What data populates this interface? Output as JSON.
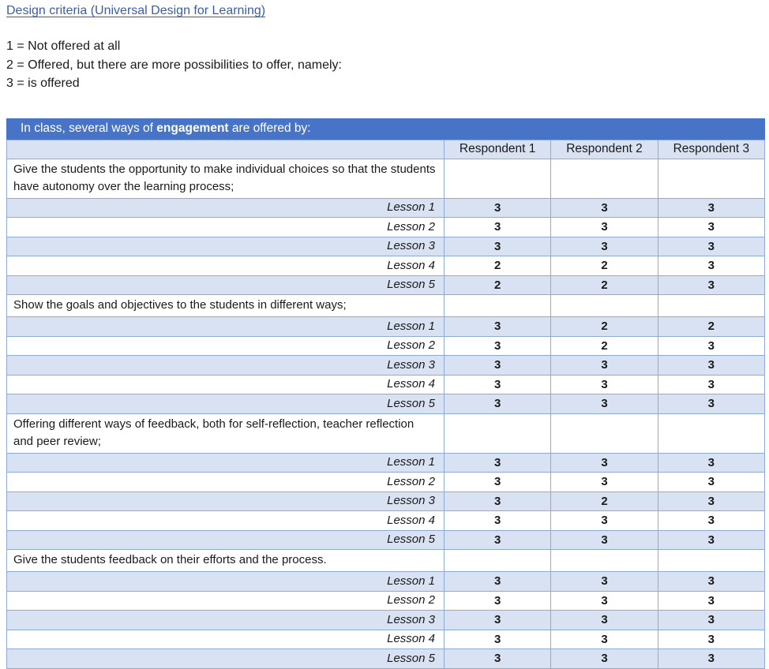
{
  "page": {
    "title": "Design criteria (Universal Design for Learning)",
    "legend": [
      "1 = Not offered at all",
      "2 = Offered, but there are more possibilities to offer, namely:",
      "3 = is offered"
    ]
  },
  "table": {
    "banner": {
      "prefix": "In class, several ways of ",
      "bold": "engagement",
      "suffix": " are offered by:"
    },
    "columns": [
      "Respondent 1",
      "Respondent 2",
      "Respondent 3"
    ],
    "sections": [
      {
        "question": "Give the students the opportunity to make individual choices so that the students have autonomy over the learning process;",
        "two_lines": true,
        "rows": [
          {
            "label": "Lesson 1",
            "values": [
              "3",
              "3",
              "3"
            ]
          },
          {
            "label": "Lesson 2",
            "values": [
              "3",
              "3",
              "3"
            ]
          },
          {
            "label": "Lesson 3",
            "values": [
              "3",
              "3",
              "3"
            ]
          },
          {
            "label": "Lesson 4",
            "values": [
              "2",
              "2",
              "3"
            ]
          },
          {
            "label": "Lesson 5",
            "values": [
              "2",
              "2",
              "3"
            ]
          }
        ]
      },
      {
        "question": "Show the goals and objectives to the students in different ways;",
        "two_lines": false,
        "rows": [
          {
            "label": "Lesson 1",
            "values": [
              "3",
              "2",
              "2"
            ]
          },
          {
            "label": "Lesson 2",
            "values": [
              "3",
              "2",
              "3"
            ]
          },
          {
            "label": "Lesson 3",
            "values": [
              "3",
              "3",
              "3"
            ]
          },
          {
            "label": "Lesson 4",
            "values": [
              "3",
              "3",
              "3"
            ]
          },
          {
            "label": "Lesson 5",
            "values": [
              "3",
              "3",
              "3"
            ]
          }
        ]
      },
      {
        "question": "Offering different ways of feedback, both for self-reflection, teacher reflection and peer review;",
        "two_lines": true,
        "rows": [
          {
            "label": "Lesson 1",
            "values": [
              "3",
              "3",
              "3"
            ]
          },
          {
            "label": "Lesson 2",
            "values": [
              "3",
              "3",
              "3"
            ]
          },
          {
            "label": "Lesson 3",
            "values": [
              "3",
              "2",
              "3"
            ]
          },
          {
            "label": "Lesson 4",
            "values": [
              "3",
              "3",
              "3"
            ]
          },
          {
            "label": "Lesson 5",
            "values": [
              "3",
              "3",
              "3"
            ]
          }
        ]
      },
      {
        "question": "Give the students feedback on their efforts and the process.",
        "two_lines": false,
        "rows": [
          {
            "label": "Lesson 1",
            "values": [
              "3",
              "3",
              "3"
            ]
          },
          {
            "label": "Lesson 2",
            "values": [
              "3",
              "3",
              "3"
            ]
          },
          {
            "label": "Lesson 3",
            "values": [
              "3",
              "3",
              "3"
            ]
          },
          {
            "label": "Lesson 4",
            "values": [
              "3",
              "3",
              "3"
            ]
          },
          {
            "label": "Lesson 5",
            "values": [
              "3",
              "3",
              "3"
            ]
          }
        ]
      }
    ]
  },
  "colors": {
    "banner_bg": "#4874c8",
    "alt_row_bg": "#d9e2f3",
    "border": "#8eaadb",
    "link": "#3b5ca8"
  }
}
